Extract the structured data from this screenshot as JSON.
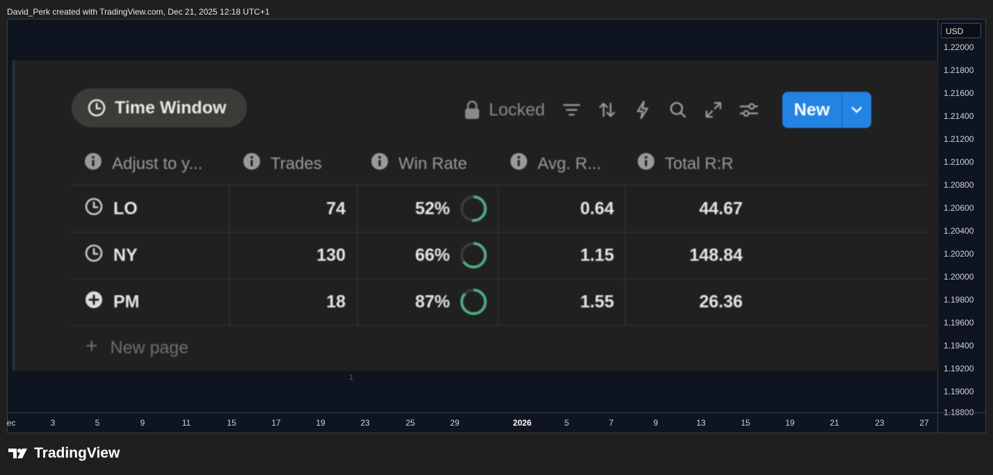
{
  "credit": "David_Perk created with TradingView.com, Dec 21, 2025 12:18 UTC+1",
  "chart": {
    "currency": "USD",
    "price_labels": [
      "1.22000",
      "1.21800",
      "1.21600",
      "1.21400",
      "1.21200",
      "1.21000",
      "1.20800",
      "1.20600",
      "1.20400",
      "1.20200",
      "1.20000",
      "1.19800",
      "1.19600",
      "1.19400",
      "1.19200",
      "1.19000",
      "1.18800"
    ],
    "time_labels": [
      "ec",
      "3",
      "5",
      "9",
      "11",
      "15",
      "17",
      "19",
      "23",
      "25",
      "29",
      "2026",
      "5",
      "7",
      "9",
      "13",
      "15",
      "19",
      "21",
      "23",
      "27"
    ],
    "pane_number": "1"
  },
  "overlay": {
    "view_title": "Time Window",
    "toolbar": {
      "locked_label": "Locked",
      "new_label": "New",
      "icons": [
        "filter-icon",
        "sort-icon",
        "lightning-icon",
        "search-icon",
        "expand-icon",
        "settings-sliders-icon"
      ]
    },
    "columns": [
      "Adjust to y...",
      "Trades",
      "Win Rate",
      "Avg. R...",
      "Total R:R"
    ],
    "rows": [
      {
        "name": "LO",
        "icon": "clock-icon",
        "trades": "74",
        "win_rate": "52%",
        "win_fraction": 0.52,
        "avg_r": "0.64",
        "total_rr": "44.67"
      },
      {
        "name": "NY",
        "icon": "clock-icon",
        "trades": "130",
        "win_rate": "66%",
        "win_fraction": 0.66,
        "avg_r": "1.15",
        "total_rr": "148.84"
      },
      {
        "name": "PM",
        "icon": "plus-circle-icon",
        "trades": "18",
        "win_rate": "87%",
        "win_fraction": 0.87,
        "avg_r": "1.55",
        "total_rr": "26.36"
      }
    ],
    "new_page_label": "New page",
    "accent": "#2383e2",
    "ring_color": "#4fae7f"
  },
  "brand": "TradingView"
}
